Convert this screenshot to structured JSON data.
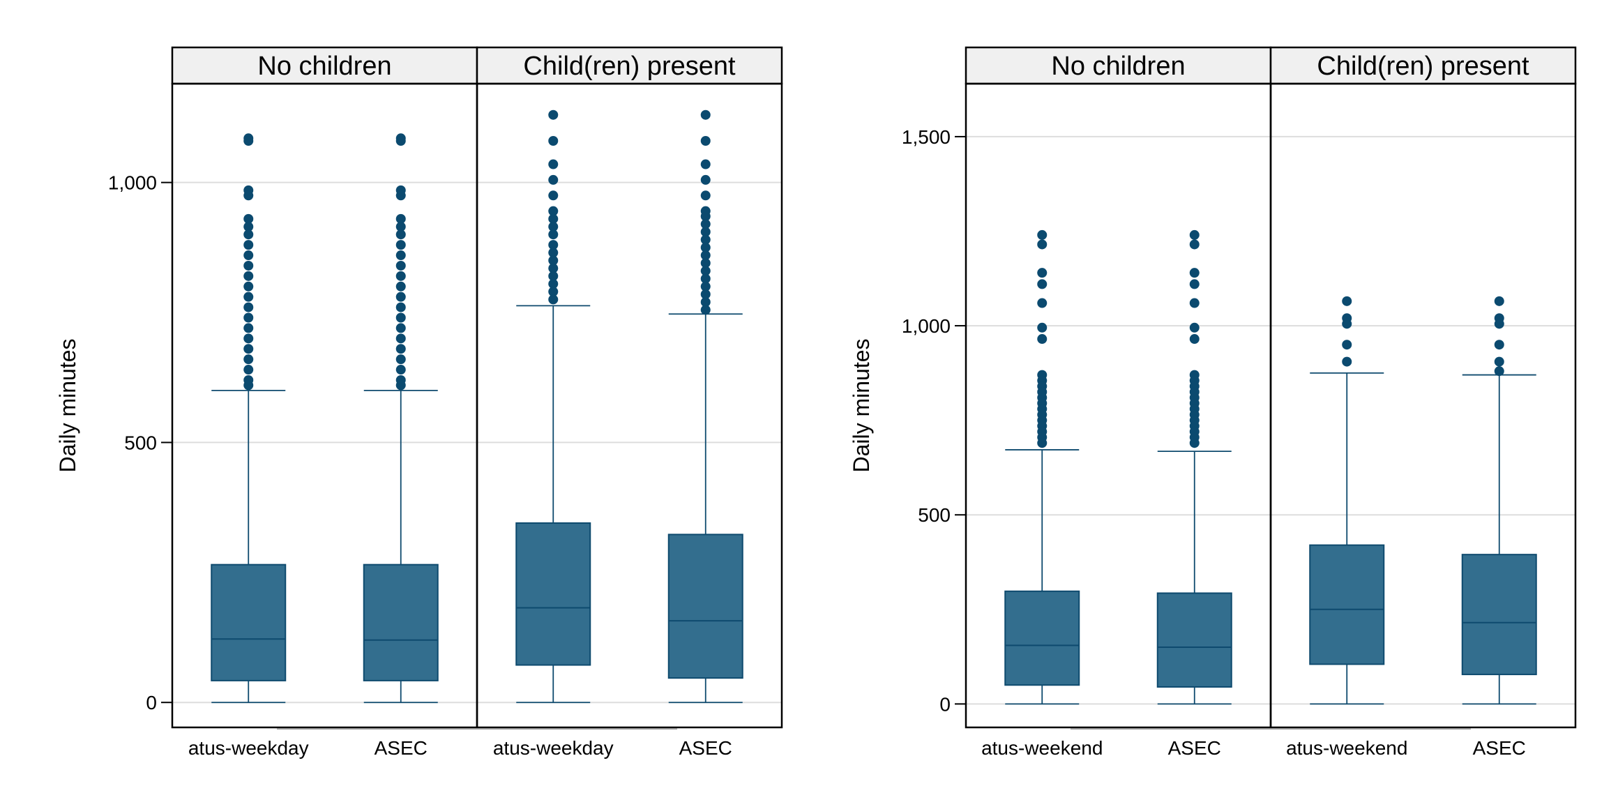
{
  "colors": {
    "box_fill": "#336e8e",
    "box_stroke": "#0e4a6e",
    "outlier": "#0b4a6f",
    "strip_bg": "#f0f0f0",
    "grid": "#dddddd"
  },
  "chart_data": [
    {
      "type": "boxplot",
      "ylabel": "Daily minutes",
      "ylim": [
        -48,
        1190
      ],
      "yticks": [
        0,
        500,
        1000
      ],
      "ytick_labels": [
        "0",
        "500",
        "1,000"
      ],
      "grid": true,
      "panels": [
        {
          "strip": "No children",
          "categories": [
            "atus-weekday",
            "ASEC"
          ],
          "boxes": [
            {
              "q1": 42,
              "median": 122,
              "q3": 265,
              "whisker_low": 0,
              "whisker_high": 600,
              "outliers": [
                1085,
                1080,
                985,
                975,
                930,
                915,
                900,
                880,
                860,
                840,
                820,
                800,
                780,
                760,
                740,
                720,
                700,
                680,
                660,
                640,
                620,
                610
              ]
            },
            {
              "q1": 42,
              "median": 120,
              "q3": 265,
              "whisker_low": 0,
              "whisker_high": 600,
              "outliers": [
                1085,
                1080,
                985,
                975,
                930,
                915,
                900,
                880,
                860,
                840,
                820,
                800,
                780,
                760,
                740,
                720,
                700,
                680,
                660,
                640,
                620,
                610
              ]
            }
          ]
        },
        {
          "strip": "Child(ren) present",
          "categories": [
            "atus-weekday",
            "ASEC"
          ],
          "boxes": [
            {
              "q1": 72,
              "median": 182,
              "q3": 345,
              "whisker_low": 0,
              "whisker_high": 763,
              "outliers": [
                1130,
                1080,
                1035,
                1005,
                975,
                945,
                930,
                915,
                900,
                880,
                865,
                850,
                835,
                820,
                805,
                790,
                775
              ]
            },
            {
              "q1": 47,
              "median": 157,
              "q3": 323,
              "whisker_low": 0,
              "whisker_high": 747,
              "outliers": [
                1130,
                1080,
                1035,
                1005,
                975,
                945,
                935,
                920,
                905,
                890,
                875,
                860,
                845,
                830,
                815,
                800,
                785,
                770,
                755
              ]
            }
          ]
        }
      ]
    },
    {
      "type": "boxplot",
      "ylabel": "Daily minutes",
      "ylim": [
        -62,
        1640
      ],
      "yticks": [
        0,
        500,
        1000,
        1500
      ],
      "ytick_labels": [
        "0",
        "500",
        "1,000",
        "1,500"
      ],
      "grid": true,
      "panels": [
        {
          "strip": "No children",
          "categories": [
            "atus-weekend",
            "ASEC"
          ],
          "boxes": [
            {
              "q1": 50,
              "median": 155,
              "q3": 298,
              "whisker_low": 0,
              "whisker_high": 672,
              "outliers": [
                1240,
                1215,
                1140,
                1110,
                1060,
                995,
                965,
                870,
                855,
                840,
                825,
                810,
                795,
                780,
                765,
                750,
                735,
                720,
                705,
                690
              ]
            },
            {
              "q1": 45,
              "median": 150,
              "q3": 293,
              "whisker_low": 0,
              "whisker_high": 668,
              "outliers": [
                1240,
                1215,
                1140,
                1110,
                1060,
                995,
                965,
                870,
                855,
                840,
                825,
                810,
                795,
                780,
                765,
                750,
                735,
                720,
                705,
                690
              ]
            }
          ]
        },
        {
          "strip": "Child(ren) present",
          "categories": [
            "atus-weekend",
            "ASEC"
          ],
          "boxes": [
            {
              "q1": 105,
              "median": 250,
              "q3": 420,
              "whisker_low": 0,
              "whisker_high": 875,
              "outliers": [
                1065,
                1020,
                1005,
                950,
                905
              ]
            },
            {
              "q1": 78,
              "median": 215,
              "q3": 395,
              "whisker_low": 0,
              "whisker_high": 870,
              "outliers": [
                1065,
                1020,
                1005,
                950,
                905,
                880
              ]
            }
          ]
        }
      ]
    }
  ]
}
